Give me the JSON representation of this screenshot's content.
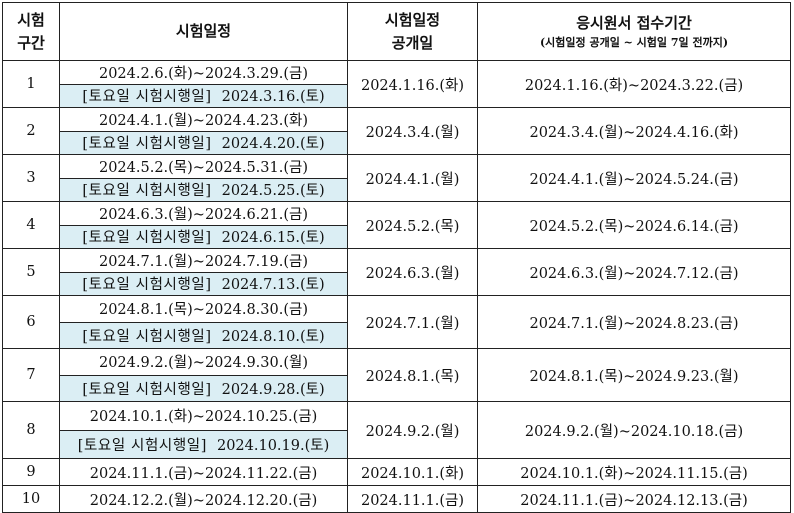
{
  "headers": {
    "section_line1": "시험",
    "section_line2": "구간",
    "schedule": "시험일정",
    "release_line1": "시험일정",
    "release_line2": "공개일",
    "apply_line1": "응시원서 접수기간",
    "apply_line2": "(시험일정 공개일 ~ 시험일 7일 전까지)"
  },
  "saturday_label": "[토요일 시험시행일]",
  "rows": [
    {
      "no": "1",
      "range": "2024.2.6.(화)~2024.3.29.(금)",
      "saturday": "2024.3.16.(토)",
      "release": "2024.1.16.(화)",
      "apply": "2024.1.16.(화)~2024.3.22.(금)"
    },
    {
      "no": "2",
      "range": "2024.4.1.(월)~2024.4.23.(화)",
      "saturday": "2024.4.20.(토)",
      "release": "2024.3.4.(월)",
      "apply": "2024.3.4.(월)~2024.4.16.(화)"
    },
    {
      "no": "3",
      "range": "2024.5.2.(목)~2024.5.31.(금)",
      "saturday": "2024.5.25.(토)",
      "release": "2024.4.1.(월)",
      "apply": "2024.4.1.(월)~2024.5.24.(금)"
    },
    {
      "no": "4",
      "range": "2024.6.3.(월)~2024.6.21.(금)",
      "saturday": "2024.6.15.(토)",
      "release": "2024.5.2.(목)",
      "apply": "2024.5.2.(목)~2024.6.14.(금)"
    },
    {
      "no": "5",
      "range": "2024.7.1.(월)~2024.7.19.(금)",
      "saturday": "2024.7.13.(토)",
      "release": "2024.6.3.(월)",
      "apply": "2024.6.3.(월)~2024.7.12.(금)"
    },
    {
      "no": "6",
      "range": "2024.8.1.(목)~2024.8.30.(금)",
      "saturday": "2024.8.10.(토)",
      "release": "2024.7.1.(월)",
      "apply": "2024.7.1.(월)~2024.8.23.(금)"
    },
    {
      "no": "7",
      "range": "2024.9.2.(월)~2024.9.30.(월)",
      "saturday": "2024.9.28.(토)",
      "release": "2024.8.1.(목)",
      "apply": "2024.8.1.(목)~2024.9.23.(월)"
    },
    {
      "no": "8",
      "range": "2024.10.1.(화)~2024.10.25.(금)",
      "saturday": "2024.10.19.(토)",
      "release": "2024.9.2.(월)",
      "apply": "2024.9.2.(월)~2024.10.18.(금)"
    },
    {
      "no": "9",
      "range": "2024.11.1.(금)~2024.11.22.(금)",
      "release": "2024.10.1.(화)",
      "apply": "2024.10.1.(화)~2024.11.15.(금)"
    },
    {
      "no": "10",
      "range": "2024.12.2.(월)~2024.12.20.(금)",
      "release": "2024.11.1.(금)",
      "apply": "2024.11.1.(금)~2024.12.13.(금)"
    }
  ],
  "colors": {
    "saturday_highlight": "#dbeef4",
    "border": "#222222"
  }
}
